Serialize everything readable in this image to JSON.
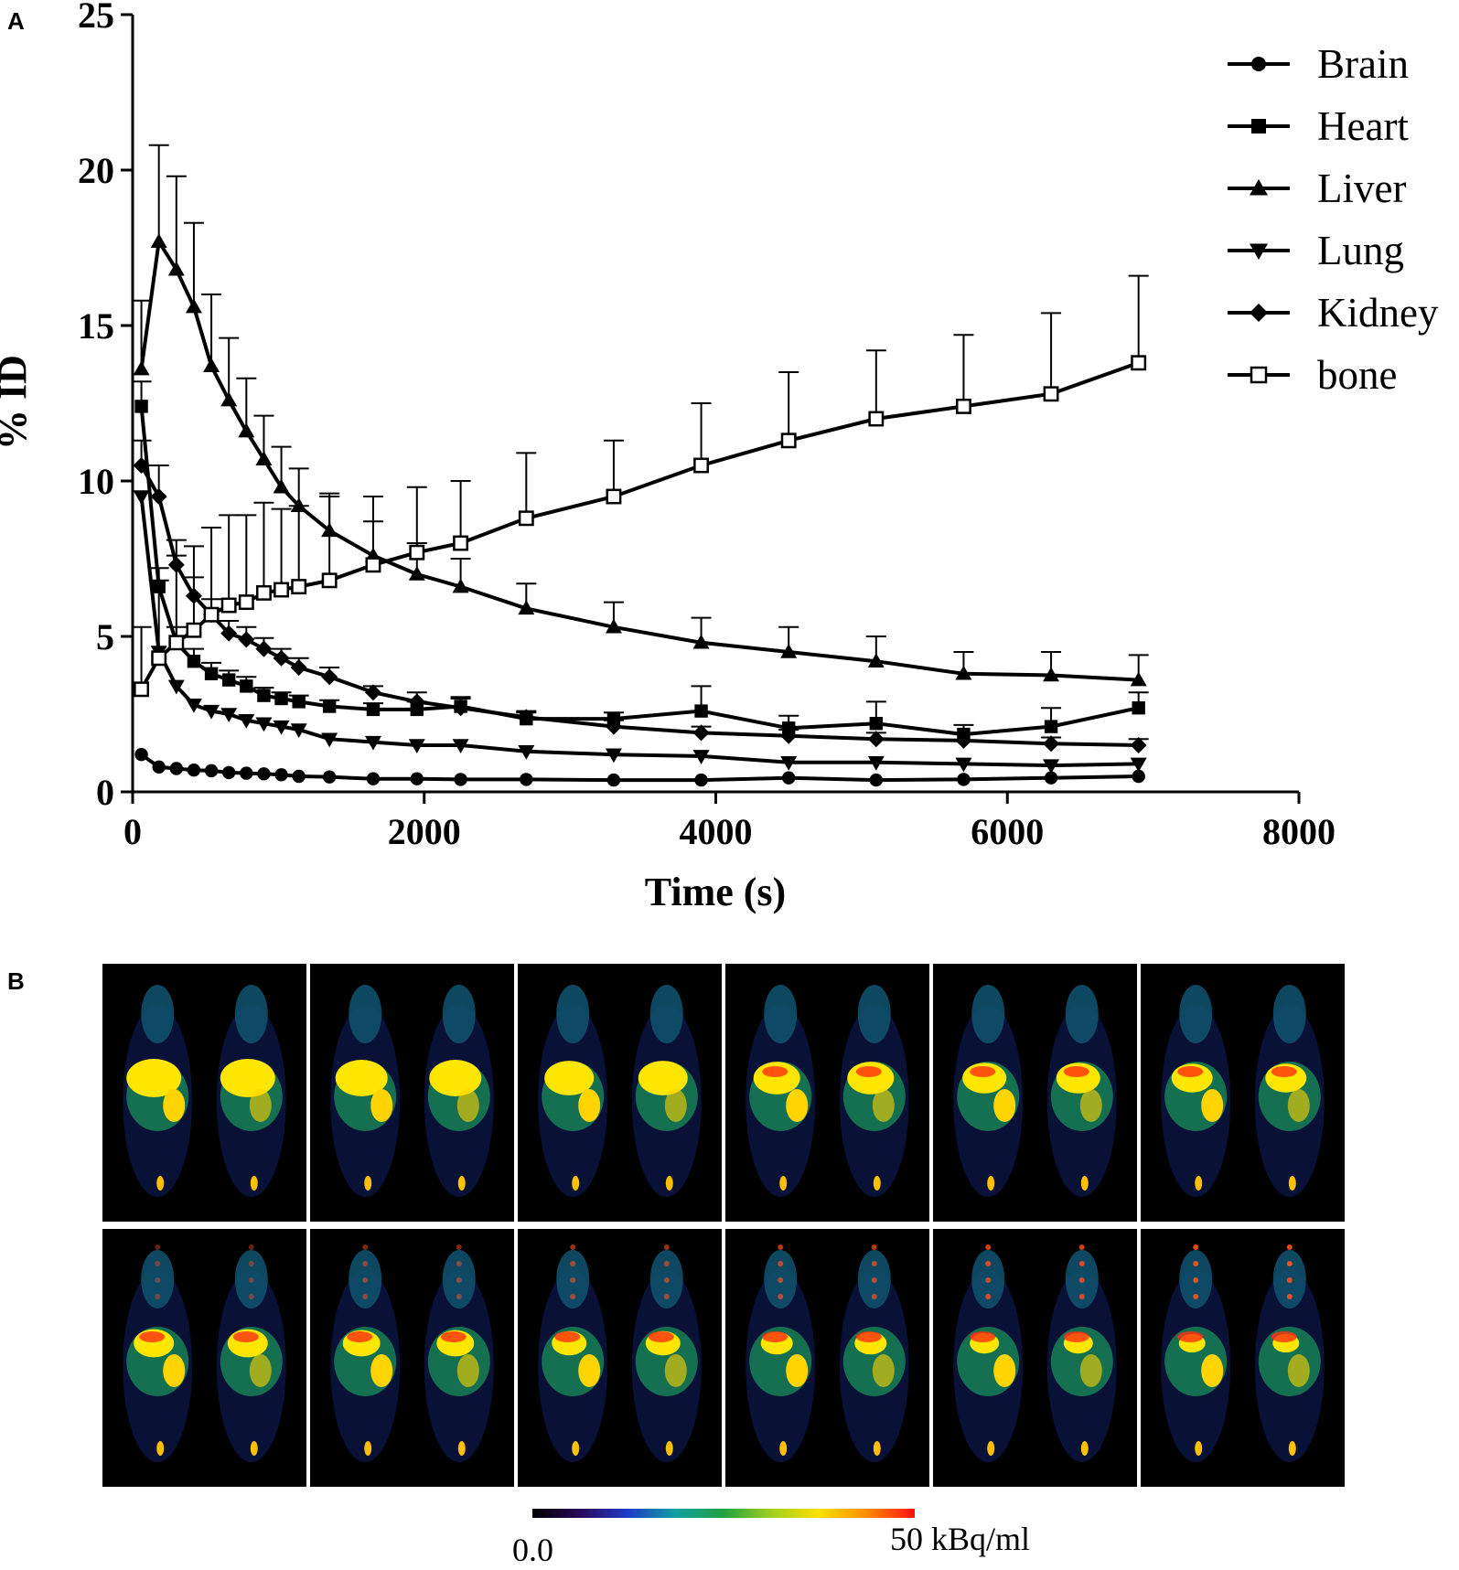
{
  "panels": {
    "a": "A",
    "b": "B"
  },
  "chart_data": {
    "type": "line",
    "title": "",
    "xlabel": "Time (s)",
    "ylabel": "% ID",
    "xlim": [
      0,
      8000
    ],
    "ylim": [
      0,
      25
    ],
    "xticks": [
      "0",
      "2000",
      "4000",
      "6000",
      "8000"
    ],
    "yticks": [
      "0",
      "5",
      "10",
      "15",
      "20",
      "25"
    ],
    "grid": false,
    "legend_position": "top-right",
    "x": [
      60,
      180,
      300,
      420,
      540,
      660,
      780,
      900,
      1020,
      1140,
      1350,
      1650,
      1950,
      2250,
      2700,
      3300,
      3900,
      4500,
      5100,
      5700,
      6300,
      6900
    ],
    "series": [
      {
        "name": "Brain",
        "marker": "circle",
        "values": [
          1.2,
          0.8,
          0.75,
          0.7,
          0.68,
          0.62,
          0.6,
          0.58,
          0.55,
          0.5,
          0.48,
          0.42,
          0.42,
          0.4,
          0.4,
          0.38,
          0.38,
          0.45,
          0.38,
          0.4,
          0.45,
          0.5
        ],
        "errors": null
      },
      {
        "name": "Heart",
        "marker": "square",
        "values": [
          12.4,
          6.6,
          4.8,
          4.2,
          3.8,
          3.6,
          3.4,
          3.1,
          3.0,
          2.9,
          2.75,
          2.65,
          2.65,
          2.75,
          2.35,
          2.35,
          2.6,
          2.05,
          2.2,
          1.85,
          2.1,
          2.7
        ],
        "errors": [
          0.8,
          0.6,
          0.5,
          0.4,
          0.35,
          0.3,
          0.3,
          0.25,
          0.2,
          0.2,
          0.2,
          0.2,
          0.25,
          0.3,
          0.2,
          0.2,
          0.8,
          0.4,
          0.7,
          0.3,
          0.6,
          0.5
        ]
      },
      {
        "name": "Liver",
        "marker": "triangle-up",
        "values": [
          13.6,
          17.7,
          16.8,
          15.6,
          13.7,
          12.6,
          11.6,
          10.7,
          9.8,
          9.2,
          8.4,
          7.6,
          7.0,
          6.6,
          5.9,
          5.3,
          4.8,
          4.5,
          4.2,
          3.8,
          3.75,
          3.6
        ],
        "errors": [
          2.2,
          3.1,
          3.0,
          2.7,
          2.3,
          2.0,
          1.7,
          1.4,
          1.3,
          1.2,
          1.1,
          1.1,
          1.0,
          0.9,
          0.8,
          0.8,
          0.8,
          0.8,
          0.8,
          0.7,
          0.75,
          0.8
        ]
      },
      {
        "name": "Lung",
        "marker": "triangle-down",
        "values": [
          9.5,
          4.5,
          3.4,
          2.8,
          2.6,
          2.5,
          2.3,
          2.2,
          2.1,
          2.0,
          1.7,
          1.6,
          1.5,
          1.5,
          1.3,
          1.2,
          1.15,
          0.95,
          0.95,
          0.9,
          0.85,
          0.9
        ],
        "errors": null
      },
      {
        "name": "Kidney",
        "marker": "diamond",
        "values": [
          10.5,
          9.5,
          7.3,
          6.3,
          5.7,
          5.1,
          4.9,
          4.6,
          4.3,
          4.0,
          3.7,
          3.2,
          2.9,
          2.7,
          2.4,
          2.1,
          1.9,
          1.8,
          1.7,
          1.65,
          1.55,
          1.5
        ],
        "errors": [
          0.8,
          1.0,
          0.8,
          0.6,
          0.5,
          0.4,
          0.4,
          0.35,
          0.3,
          0.3,
          0.3,
          0.2,
          0.3,
          0.3,
          0.2,
          0.2,
          0.2,
          0.2,
          0.2,
          0.2,
          0.2,
          0.2
        ]
      },
      {
        "name": "bone",
        "marker": "square-open",
        "values": [
          3.3,
          4.3,
          4.8,
          5.2,
          5.7,
          6.0,
          6.1,
          6.4,
          6.5,
          6.6,
          6.8,
          7.3,
          7.7,
          8.0,
          8.8,
          9.5,
          10.5,
          11.3,
          12.0,
          12.4,
          12.8,
          13.8
        ],
        "errors": [
          2.0,
          2.5,
          2.8,
          2.7,
          2.8,
          2.9,
          2.8,
          2.9,
          2.6,
          2.6,
          2.8,
          2.2,
          2.1,
          2.0,
          2.1,
          1.8,
          2.0,
          2.2,
          2.2,
          2.3,
          2.6,
          2.8
        ]
      }
    ]
  },
  "pet_images": {
    "rows": 2,
    "columns": 6,
    "colorbar": {
      "min_label": "0.0",
      "max_label": "50 kBq/ml",
      "colors": [
        "#000000",
        "#2a0a5a",
        "#1e3cc8",
        "#10a0a0",
        "#22a040",
        "#a0d020",
        "#ffe000",
        "#ff8c00",
        "#ff1010"
      ]
    }
  }
}
